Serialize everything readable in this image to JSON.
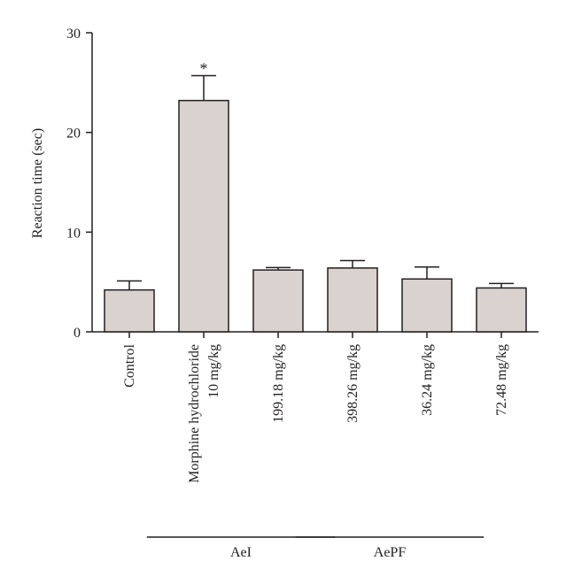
{
  "chart_data": {
    "type": "bar",
    "title": "",
    "xlabel": "",
    "ylabel": "Reaction time (sec)",
    "ylim": [
      0,
      30
    ],
    "yticks": [
      0,
      10,
      20,
      30
    ],
    "grid": false,
    "categories": [
      [
        "Control"
      ],
      [
        "Morphine hydrochloride",
        "10 mg/kg"
      ],
      [
        "199.18 mg/kg"
      ],
      [
        "398.26 mg/kg"
      ],
      [
        "36.24 mg/kg"
      ],
      [
        "72.48 mg/kg"
      ]
    ],
    "values": [
      4.2,
      23.2,
      6.2,
      6.4,
      5.3,
      4.4
    ],
    "errors": [
      0.9,
      2.5,
      0.25,
      0.75,
      1.2,
      0.45
    ],
    "significance": [
      "",
      "*",
      "",
      "",
      "",
      ""
    ],
    "groups": [
      {
        "label": "AeI",
        "from": 1,
        "to": 2
      },
      {
        "label": "AePF",
        "from": 3,
        "to": 4
      }
    ],
    "colors": {
      "bar_fill": "#d9d2cf",
      "stroke": "#231f20"
    }
  }
}
